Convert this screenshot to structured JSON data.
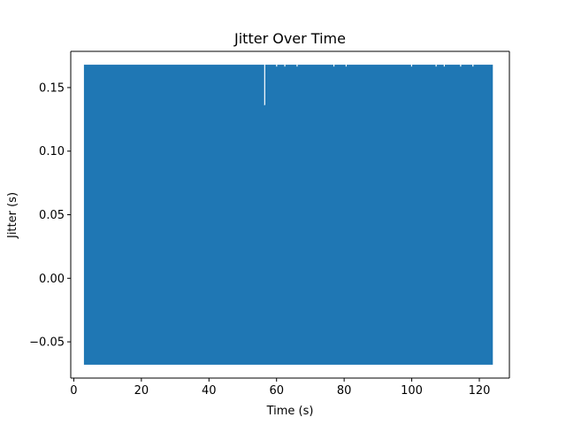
{
  "chart_data": {
    "type": "line",
    "title": "Jitter Over Time",
    "xlabel": "Time (s)",
    "ylabel": "Jitter (s)",
    "xlim": [
      -0.9,
      128.9
    ],
    "ylim": [
      -0.0785,
      0.1785
    ],
    "xticks": [
      20,
      40,
      60,
      80,
      100,
      120
    ],
    "xtick_labels": [
      "20",
      "40",
      "60",
      "80",
      "100",
      "120"
    ],
    "xticks_all": [
      0,
      20,
      40,
      60,
      80,
      100,
      120
    ],
    "xtick_labels_all": [
      "0",
      "20",
      "40",
      "60",
      "80",
      "100",
      "120"
    ],
    "yticks": [
      -0.05,
      0.0,
      0.05,
      0.1,
      0.15
    ],
    "ytick_labels": [
      "−0.05",
      "0.00",
      "0.05",
      "0.10",
      "0.15"
    ],
    "grid": false,
    "legend": "none",
    "series": [
      {
        "color": "#1f77b4",
        "x_range": [
          3.0,
          124.0
        ],
        "envelope_min": -0.068,
        "envelope_max": 0.168,
        "note_points": [
          {
            "x": 56.5,
            "y": 0.136
          }
        ]
      }
    ]
  }
}
